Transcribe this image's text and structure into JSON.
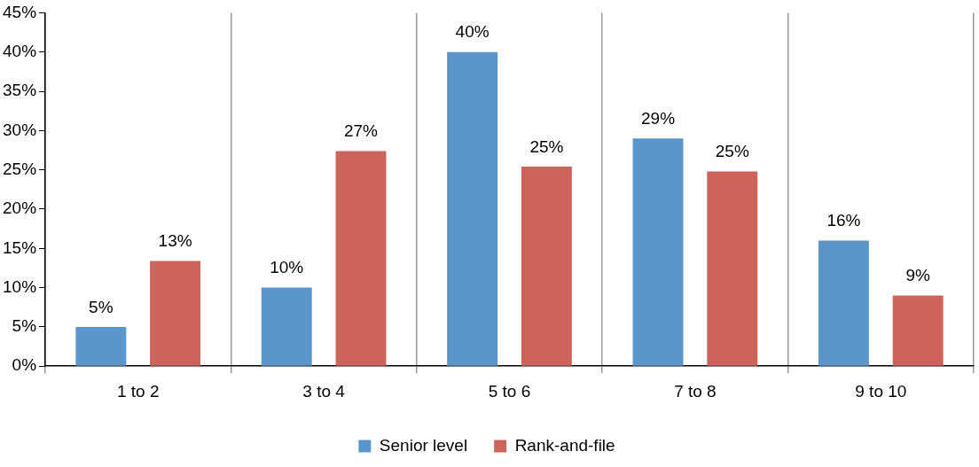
{
  "chart_data": {
    "type": "bar",
    "categories": [
      "1 to 2",
      "3 to 4",
      "5 to 6",
      "7 to 8",
      "9 to 10"
    ],
    "series": [
      {
        "name": "Senior level",
        "color": "#5b96cb",
        "values": [
          5,
          10,
          40,
          29,
          16
        ],
        "value_labels": [
          "5%",
          "10%",
          "40%",
          "29%",
          "16%"
        ]
      },
      {
        "name": "Rank-and-file",
        "color": "#cd645c",
        "values": [
          13.4,
          27.4,
          25.4,
          24.8,
          9
        ],
        "value_labels": [
          "13%",
          "27%",
          "25%",
          "25%",
          "9%"
        ]
      }
    ],
    "ylim": [
      0,
      45
    ],
    "yticks": [
      {
        "value": 0,
        "label": "0%"
      },
      {
        "value": 5,
        "label": "5%"
      },
      {
        "value": 10,
        "label": "10%"
      },
      {
        "value": 15,
        "label": "15%"
      },
      {
        "value": 20,
        "label": "20%"
      },
      {
        "value": 25,
        "label": "25%"
      },
      {
        "value": 30,
        "label": "30%"
      },
      {
        "value": 35,
        "label": "35%"
      },
      {
        "value": 40,
        "label": "40%"
      },
      {
        "value": 45,
        "label": "45%"
      }
    ],
    "grid": "x",
    "legend": "bottom"
  }
}
